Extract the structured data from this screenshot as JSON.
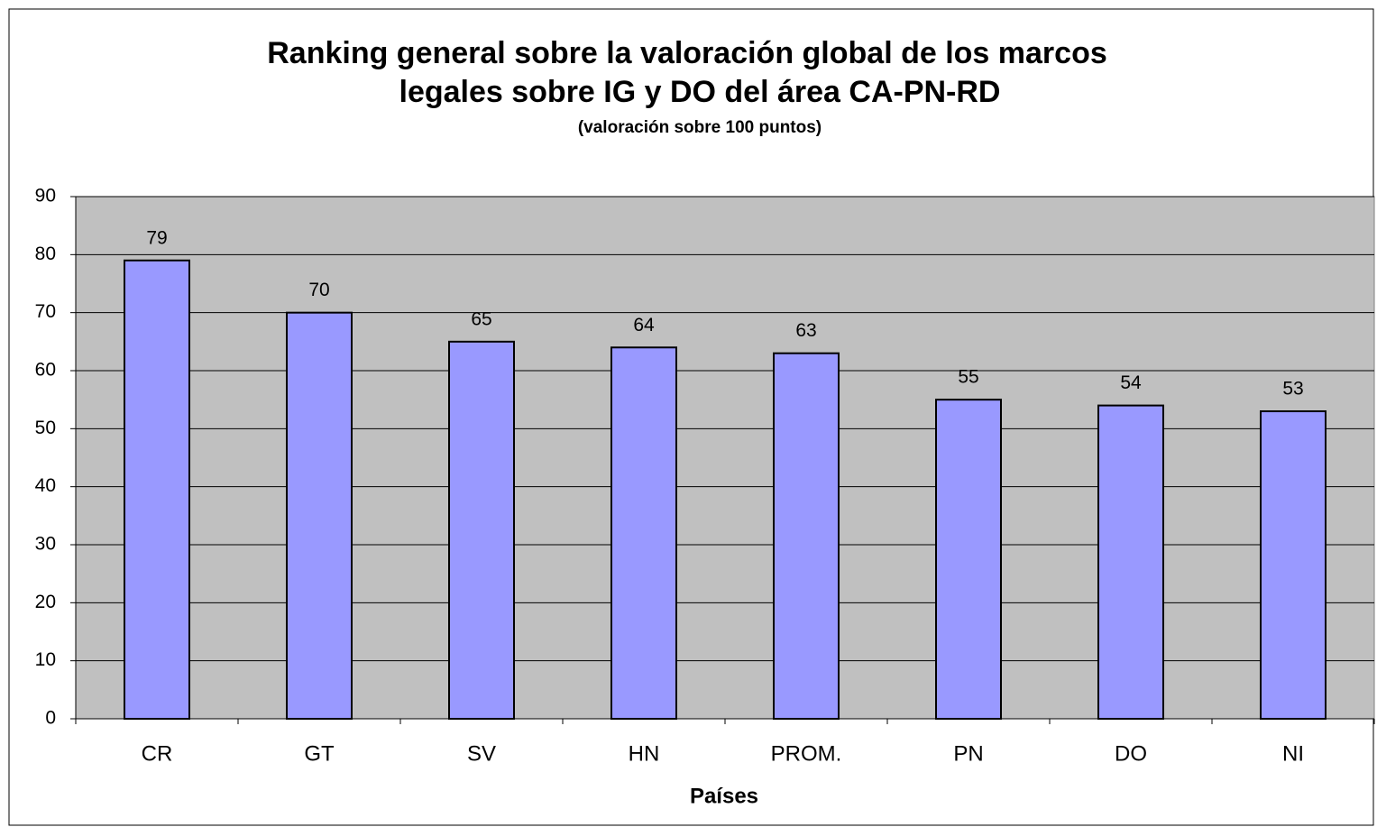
{
  "chart_data": {
    "type": "bar",
    "title": [
      "Ranking general sobre la valoración global de los marcos",
      "legales sobre IG y DO del área CA-PN-RD"
    ],
    "subtitle": "(valoración sobre 100 puntos)",
    "x_label": "Países",
    "categories": [
      "CR",
      "GT",
      "SV",
      "HN",
      "PROM.",
      "PN",
      "DO",
      "NI"
    ],
    "values": [
      79,
      70,
      65,
      64,
      63,
      55,
      54,
      53
    ],
    "color": "#9999ff",
    "ylim": [
      0,
      90
    ],
    "yticks": [
      0,
      10,
      20,
      30,
      40,
      50,
      60,
      70,
      80,
      90
    ],
    "grid": true
  }
}
